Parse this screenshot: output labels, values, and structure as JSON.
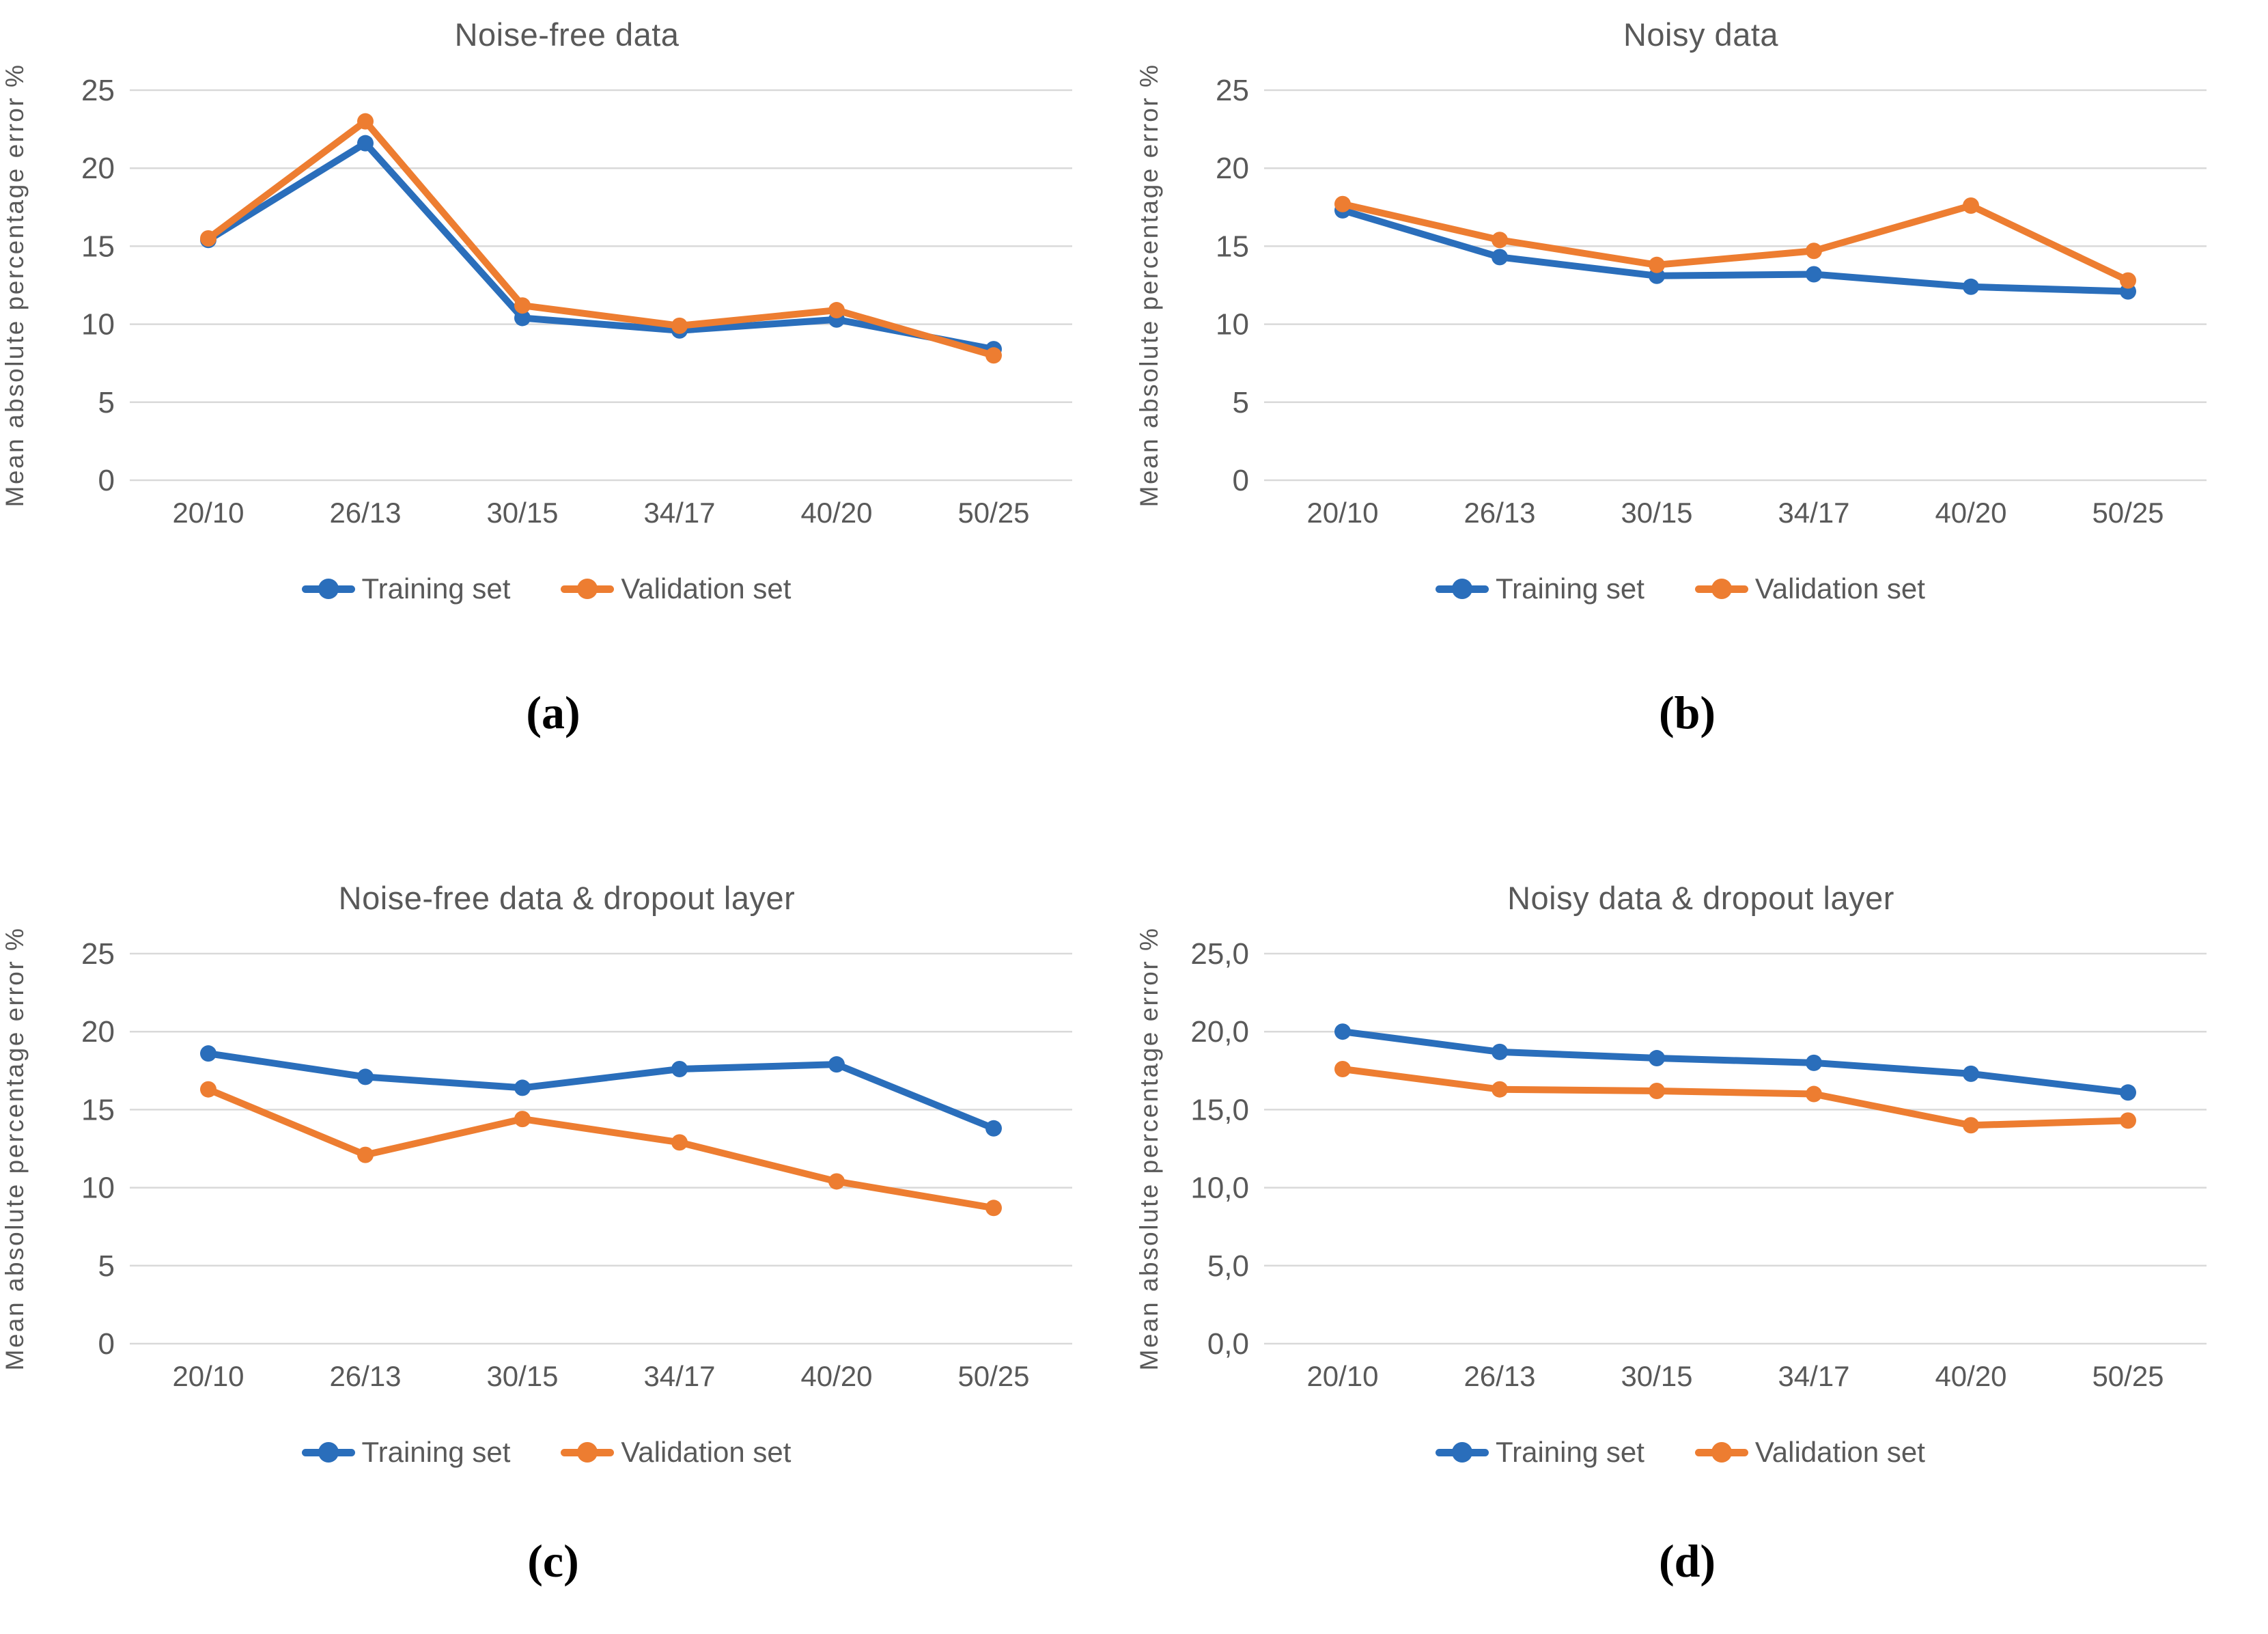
{
  "figure": {
    "background": "#ffffff"
  },
  "colors": {
    "training": "#2A6EBB",
    "validation": "#ED7D31",
    "gridline": "#D9D9D9",
    "axis_text": "#595959",
    "title_text": "#595959",
    "sublabel_text": "#000000"
  },
  "chart_data": [
    {
      "type": "line",
      "title": "Noise-free data",
      "sublabel": "(a)",
      "ylabel": "Mean absolute percentage error %",
      "xlabel": "",
      "ylim": [
        0,
        25
      ],
      "grid": "horizontal",
      "legend_position": "bottom",
      "y_ticks": [
        {
          "v": 25,
          "label": "25"
        },
        {
          "v": 20,
          "label": "20"
        },
        {
          "v": 15,
          "label": "15"
        },
        {
          "v": 10,
          "label": "10"
        },
        {
          "v": 5,
          "label": "5"
        },
        {
          "v": 0,
          "label": "0"
        }
      ],
      "categories": [
        "20/10",
        "26/13",
        "30/15",
        "34/17",
        "40/20",
        "50/25"
      ],
      "series": [
        {
          "name": "Training set",
          "color": "#2A6EBB",
          "values": [
            15.4,
            21.6,
            10.4,
            9.6,
            10.3,
            8.4
          ]
        },
        {
          "name": "Validation set",
          "color": "#ED7D31",
          "values": [
            15.5,
            23.0,
            11.2,
            9.9,
            10.9,
            8.0
          ]
        }
      ]
    },
    {
      "type": "line",
      "title": "Noisy data",
      "sublabel": "(b)",
      "ylabel": "Mean absolute percentage error %",
      "xlabel": "",
      "ylim": [
        0,
        25
      ],
      "grid": "horizontal",
      "legend_position": "bottom",
      "y_ticks": [
        {
          "v": 25,
          "label": "25"
        },
        {
          "v": 20,
          "label": "20"
        },
        {
          "v": 15,
          "label": "15"
        },
        {
          "v": 10,
          "label": "10"
        },
        {
          "v": 5,
          "label": "5"
        },
        {
          "v": 0,
          "label": "0"
        }
      ],
      "categories": [
        "20/10",
        "26/13",
        "30/15",
        "34/17",
        "40/20",
        "50/25"
      ],
      "series": [
        {
          "name": "Training set",
          "color": "#2A6EBB",
          "values": [
            17.3,
            14.3,
            13.1,
            13.2,
            12.4,
            12.1
          ]
        },
        {
          "name": "Validation set",
          "color": "#ED7D31",
          "values": [
            17.7,
            15.4,
            13.8,
            14.7,
            17.6,
            12.8
          ]
        }
      ]
    },
    {
      "type": "line",
      "title": "Noise-free data & dropout layer",
      "sublabel": "(c)",
      "ylabel": "Mean absolute percentage error %",
      "xlabel": "",
      "ylim": [
        0,
        25
      ],
      "grid": "horizontal",
      "legend_position": "bottom",
      "y_ticks": [
        {
          "v": 25,
          "label": "25"
        },
        {
          "v": 20,
          "label": "20"
        },
        {
          "v": 15,
          "label": "15"
        },
        {
          "v": 10,
          "label": "10"
        },
        {
          "v": 5,
          "label": "5"
        },
        {
          "v": 0,
          "label": "0"
        }
      ],
      "categories": [
        "20/10",
        "26/13",
        "30/15",
        "34/17",
        "40/20",
        "50/25"
      ],
      "series": [
        {
          "name": "Training set",
          "color": "#2A6EBB",
          "values": [
            18.6,
            17.1,
            16.4,
            17.6,
            17.9,
            13.8
          ]
        },
        {
          "name": "Validation set",
          "color": "#ED7D31",
          "values": [
            16.3,
            12.1,
            14.4,
            12.9,
            10.4,
            8.7
          ]
        }
      ]
    },
    {
      "type": "line",
      "title": "Noisy data & dropout layer",
      "sublabel": "(d)",
      "ylabel": "Mean absolute percentage error %",
      "xlabel": "",
      "ylim": [
        0,
        25
      ],
      "grid": "horizontal",
      "legend_position": "bottom",
      "y_ticks": [
        {
          "v": 25,
          "label": "25,0"
        },
        {
          "v": 20,
          "label": "20,0"
        },
        {
          "v": 15,
          "label": "15,0"
        },
        {
          "v": 10,
          "label": "10,0"
        },
        {
          "v": 5,
          "label": "5,0"
        },
        {
          "v": 0,
          "label": "0,0"
        }
      ],
      "categories": [
        "20/10",
        "26/13",
        "30/15",
        "34/17",
        "40/20",
        "50/25"
      ],
      "series": [
        {
          "name": "Training set",
          "color": "#2A6EBB",
          "values": [
            20.0,
            18.7,
            18.3,
            18.0,
            17.3,
            16.1
          ]
        },
        {
          "name": "Validation set",
          "color": "#ED7D31",
          "values": [
            17.6,
            16.3,
            16.2,
            16.0,
            14.0,
            14.3
          ]
        }
      ]
    }
  ]
}
